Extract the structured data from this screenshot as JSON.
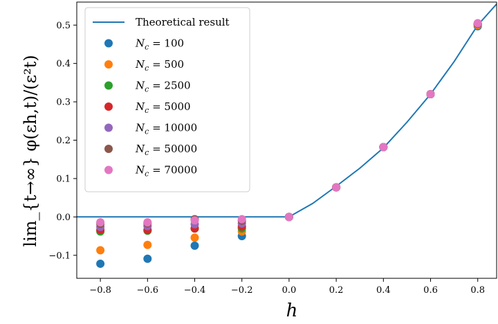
{
  "chart_data": {
    "type": "scatter",
    "xlabel": "h",
    "ylabel": "lim_{t→∞} φ(εh,t)/(ε²t)",
    "xlim": [
      -0.9,
      0.88
    ],
    "ylim": [
      -0.16,
      0.56
    ],
    "x_ticks": [
      "−0.8",
      "−0.6",
      "−0.4",
      "−0.2",
      "0.0",
      "0.2",
      "0.4",
      "0.6",
      "0.8"
    ],
    "x_tick_values": [
      -0.8,
      -0.6,
      -0.4,
      -0.2,
      0.0,
      0.2,
      0.4,
      0.6,
      0.8
    ],
    "y_ticks": [
      "−0.1",
      "0.0",
      "0.1",
      "0.2",
      "0.3",
      "0.4",
      "0.5"
    ],
    "y_tick_values": [
      -0.1,
      0.0,
      0.1,
      0.2,
      0.3,
      0.4,
      0.5
    ],
    "legend_position": "top-left",
    "theory": {
      "name": "Theoretical result",
      "color": "#1f77b4",
      "x": [
        -0.9,
        -0.8,
        -0.6,
        -0.4,
        -0.2,
        0.0,
        0.1,
        0.2,
        0.3,
        0.4,
        0.5,
        0.6,
        0.7,
        0.8,
        0.88
      ],
      "y": [
        0,
        0,
        0,
        0,
        0,
        0,
        0.035,
        0.08,
        0.127,
        0.18,
        0.247,
        0.32,
        0.405,
        0.5,
        0.555
      ]
    },
    "x": [
      -0.8,
      -0.6,
      -0.4,
      -0.2,
      0.0,
      0.2,
      0.4,
      0.6,
      0.8
    ],
    "series": [
      {
        "name": "N_c = 100",
        "color": "#1f77b4",
        "values": [
          -0.122,
          -0.109,
          -0.075,
          -0.05,
          0.0,
          0.077,
          0.182,
          0.32,
          0.497
        ]
      },
      {
        "name": "N_c = 500",
        "color": "#ff7f0e",
        "values": [
          -0.087,
          -0.073,
          -0.054,
          -0.038,
          0.0,
          0.077,
          0.182,
          0.32,
          0.5
        ]
      },
      {
        "name": "N_c = 2500",
        "color": "#2ca02c",
        "values": [
          -0.038,
          -0.036,
          -0.03,
          -0.03,
          0.0,
          0.077,
          0.182,
          0.32,
          0.503
        ]
      },
      {
        "name": "N_c = 5000",
        "color": "#d62728",
        "values": [
          -0.034,
          -0.034,
          -0.03,
          -0.025,
          0.0,
          0.077,
          0.182,
          0.32,
          0.503
        ]
      },
      {
        "name": "N_c = 10000",
        "color": "#9467bd",
        "values": [
          -0.026,
          -0.024,
          -0.019,
          -0.017,
          0.0,
          0.077,
          0.182,
          0.32,
          0.503
        ]
      },
      {
        "name": "N_c = 50000",
        "color": "#8c564b",
        "values": [
          -0.018,
          -0.017,
          -0.006,
          -0.01,
          0.0,
          0.077,
          0.182,
          0.32,
          0.503
        ]
      },
      {
        "name": "N_c = 70000",
        "color": "#e377c2",
        "values": [
          -0.014,
          -0.014,
          -0.009,
          -0.006,
          0.0,
          0.077,
          0.182,
          0.32,
          0.505
        ]
      }
    ]
  }
}
